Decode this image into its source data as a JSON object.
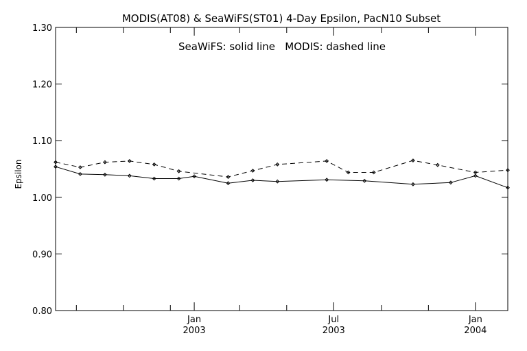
{
  "chart_data": {
    "type": "line",
    "title": "MODIS(AT08) & SeaWiFS(ST01) 4-Day Epsilon, PacN10 Subset",
    "annotation": "SeaWiFS: solid line   MODIS: dashed line",
    "xlabel": "",
    "ylabel": "Epsilon",
    "ylim": [
      0.8,
      1.3
    ],
    "xlim": [
      "2002-07-05",
      "2004-02-12"
    ],
    "grid": false,
    "yticks": [
      {
        "value": 0.8,
        "label": "0.80"
      },
      {
        "value": 0.9,
        "label": "0.90"
      },
      {
        "value": 1.0,
        "label": "1.00"
      },
      {
        "value": 1.1,
        "label": "1.10"
      },
      {
        "value": 1.2,
        "label": "1.20"
      },
      {
        "value": 1.3,
        "label": "1.30"
      }
    ],
    "xticks_labeled": [
      {
        "date": "2003-01-01",
        "month": "Jan",
        "year": "2003"
      },
      {
        "date": "2003-07-01",
        "month": "Jul",
        "year": "2003"
      },
      {
        "date": "2004-01-01",
        "month": "Jan",
        "year": "2004"
      }
    ],
    "xticks_minor": [
      "2002-08-01",
      "2002-10-01",
      "2002-12-01",
      "2003-03-01",
      "2003-05-01",
      "2003-09-01",
      "2003-11-01"
    ],
    "series": [
      {
        "line_style": "solid",
        "color": "#000000",
        "x": [
          "2002-07-05",
          "2002-08-06",
          "2002-09-07",
          "2002-10-09",
          "2002-11-10",
          "2002-12-12",
          "2003-01-01",
          "2003-02-14",
          "2003-03-18",
          "2003-04-19",
          "2003-06-22",
          "2003-08-10",
          "2003-10-12",
          "2003-11-30",
          "2004-01-01",
          "2004-02-12"
        ],
        "values": [
          1.054,
          1.041,
          1.04,
          1.038,
          1.033,
          1.033,
          1.037,
          1.025,
          1.03,
          1.028,
          1.031,
          1.029,
          1.023,
          1.026,
          1.038,
          1.017
        ]
      },
      {
        "line_style": "dashed",
        "color": "#000000",
        "x": [
          "2002-07-05",
          "2002-08-06",
          "2002-09-07",
          "2002-10-09",
          "2002-11-10",
          "2002-12-12",
          "2003-02-14",
          "2003-03-18",
          "2003-04-19",
          "2003-06-22",
          "2003-07-20",
          "2003-08-22",
          "2003-10-12",
          "2003-11-13",
          "2004-01-01",
          "2004-02-12"
        ],
        "values": [
          1.062,
          1.053,
          1.062,
          1.064,
          1.058,
          1.046,
          1.036,
          1.047,
          1.058,
          1.064,
          1.044,
          1.044,
          1.065,
          1.057,
          1.044,
          1.048
        ]
      }
    ]
  }
}
